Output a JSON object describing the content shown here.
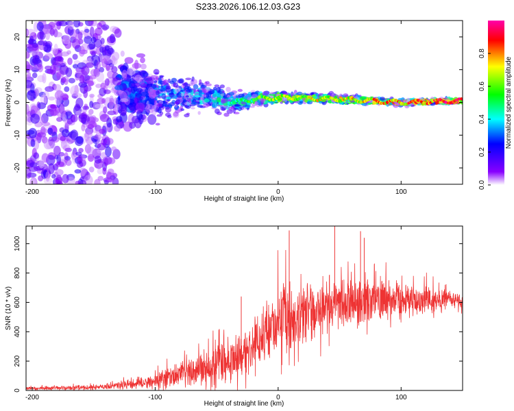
{
  "title": "S233.2026.106.12.03.G23",
  "chart_data": [
    {
      "type": "heatmap",
      "panel": "top",
      "xlabel": "Height of straight line (km)",
      "ylabel": "Frequency (Hz)",
      "xlim": [
        -205,
        150
      ],
      "ylim": [
        -25,
        25
      ],
      "x_ticks": [
        -200,
        -100,
        0,
        100
      ],
      "y_ticks": [
        -20,
        -10,
        0,
        10,
        20
      ],
      "colorbar": {
        "label": "Normalized spectral amplitude",
        "range": [
          0,
          1
        ],
        "ticks": [
          0.0,
          0.2,
          0.4,
          0.6,
          0.8
        ],
        "tick_labels": [
          "0.0",
          "0.2",
          "0.4",
          "0.6",
          "0.8"
        ],
        "colors": [
          "#ffffff",
          "#8800ff",
          "#0000ff",
          "#00ffff",
          "#00ff00",
          "#ffff00",
          "#ff0000",
          "#ff00aa"
        ]
      },
      "ridge": {
        "description_points_x": [
          -205,
          -150,
          -100,
          -60,
          -35,
          -20,
          0,
          50,
          100,
          150
        ],
        "center_freq_hz": [
          3,
          3,
          2.5,
          2,
          0,
          1,
          1.5,
          1,
          0,
          0.5
        ],
        "spread_hz": [
          25,
          22,
          10,
          6,
          4,
          3,
          2,
          1.5,
          1,
          0.8
        ],
        "peak_amplitude": [
          0.3,
          0.3,
          0.35,
          0.45,
          0.5,
          0.6,
          0.7,
          0.75,
          0.85,
          0.95
        ]
      }
    },
    {
      "type": "line",
      "panel": "bottom",
      "xlabel": "Height of straight line (km)",
      "ylabel": "SNR (10 * v/v)",
      "xlim": [
        -205,
        150
      ],
      "ylim": [
        0,
        1120
      ],
      "x_ticks": [
        -200,
        -100,
        0,
        100
      ],
      "y_ticks": [
        0,
        200,
        400,
        600,
        800,
        1000
      ],
      "color": "#ee3333",
      "envelope": {
        "x": [
          -205,
          -150,
          -120,
          -100,
          -80,
          -60,
          -40,
          -25,
          -10,
          0,
          20,
          40,
          60,
          80,
          100,
          120,
          150
        ],
        "mean": [
          15,
          20,
          40,
          65,
          110,
          150,
          200,
          280,
          380,
          480,
          530,
          580,
          600,
          610,
          620,
          620,
          610
        ],
        "spread": [
          10,
          12,
          25,
          40,
          60,
          80,
          110,
          140,
          160,
          180,
          160,
          150,
          140,
          120,
          90,
          70,
          40
        ]
      },
      "spikes": [
        {
          "x": -30,
          "y": 640
        },
        {
          "x": 9,
          "y": 1090
        },
        {
          "x": 46,
          "y": 1120
        },
        {
          "x": 67,
          "y": 1085
        },
        {
          "x": 70,
          "y": 1040
        }
      ]
    }
  ]
}
